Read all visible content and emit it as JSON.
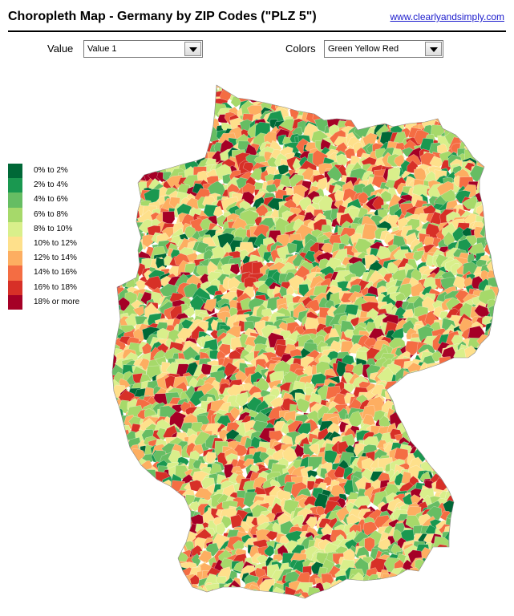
{
  "header": {
    "title": "Choropleth Map - Germany by ZIP Codes (\"PLZ 5\")",
    "link_text": "www.clearlyandsimply.com"
  },
  "controls": {
    "value_label": "Value",
    "value_selected": "Value 1",
    "colors_label": "Colors",
    "colors_selected": "Green Yellow Red"
  },
  "legend": [
    {
      "label": "0%  to 2%",
      "color": "#006837"
    },
    {
      "label": "2% to 4%",
      "color": "#1a9850"
    },
    {
      "label": "4% to 6%",
      "color": "#66bd63"
    },
    {
      "label": "6% to 8%",
      "color": "#a6d96a"
    },
    {
      "label": "8% to 10%",
      "color": "#d9ef8b"
    },
    {
      "label": "10% to 12%",
      "color": "#fee08b"
    },
    {
      "label": "12% to 14%",
      "color": "#fdae61"
    },
    {
      "label": "14% to 16%",
      "color": "#f46d43"
    },
    {
      "label": "16% to 18%",
      "color": "#d73027"
    },
    {
      "label": "18% or more",
      "color": "#a50026"
    }
  ]
}
